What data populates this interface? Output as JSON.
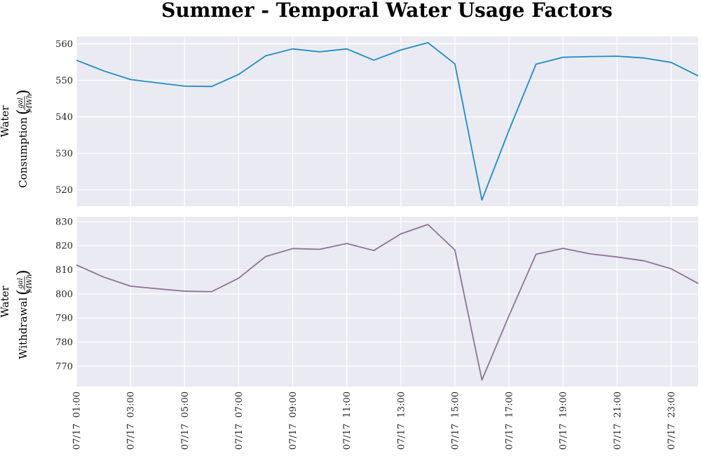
{
  "chart_data": {
    "type": "line",
    "title": "Summer - Temporal Water Usage Factors",
    "x": [
      "07/17 01:00",
      "07/17 02:00",
      "07/17 03:00",
      "07/17 04:00",
      "07/17 05:00",
      "07/17 06:00",
      "07/17 07:00",
      "07/17 08:00",
      "07/17 09:00",
      "07/17 10:00",
      "07/17 11:00",
      "07/17 12:00",
      "07/17 13:00",
      "07/17 14:00",
      "07/17 15:00",
      "07/17 16:00",
      "07/17 17:00",
      "07/17 18:00",
      "07/17 19:00",
      "07/17 20:00",
      "07/17 21:00",
      "07/17 22:00",
      "07/17 23:00",
      "07/18 00:00"
    ],
    "xtick_labels": [
      "07/17  01:00",
      "07/17  03:00",
      "07/17  05:00",
      "07/17  07:00",
      "07/17  09:00",
      "07/17  11:00",
      "07/17  13:00",
      "07/17  15:00",
      "07/17  17:00",
      "07/17  19:00",
      "07/17  21:00",
      "07/17  23:00"
    ],
    "grid": true,
    "panels": [
      {
        "ylabel_line1": "Water",
        "ylabel_line2": "Consumption",
        "unit_numerator": "gal",
        "unit_denominator": "MWh",
        "ylim": [
          515.5,
          562
        ],
        "yticks": [
          520,
          530,
          540,
          550,
          560
        ],
        "color": "#1f8bc8",
        "values": [
          555.5,
          552.6,
          550.2,
          549.3,
          548.4,
          548.3,
          551.6,
          556.7,
          558.6,
          557.8,
          558.6,
          555.5,
          558.3,
          560.3,
          554.5,
          517.2,
          536.3,
          554.4,
          556.3,
          556.5,
          556.6,
          556.1,
          554.9,
          551.2
        ]
      },
      {
        "ylabel_line1": "Water",
        "ylabel_line2": "Withdrawal",
        "unit_numerator": "gal",
        "unit_denominator": "MWh",
        "ylim": [
          761.5,
          832
        ],
        "yticks": [
          770,
          780,
          790,
          800,
          810,
          820,
          830
        ],
        "color": "#8c7396",
        "values": [
          812.0,
          807.0,
          803.2,
          802.1,
          801.1,
          800.9,
          806.5,
          815.5,
          818.8,
          818.5,
          820.9,
          818.0,
          824.9,
          828.8,
          818.2,
          764.2,
          790.9,
          816.4,
          818.9,
          816.6,
          815.3,
          813.7,
          810.4,
          804.3
        ]
      }
    ]
  }
}
